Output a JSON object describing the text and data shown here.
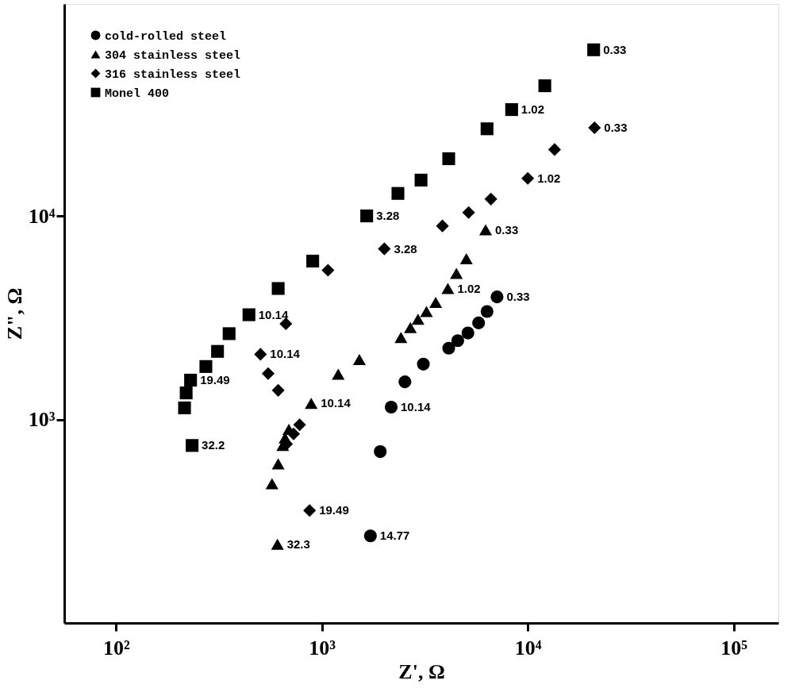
{
  "chart_data": {
    "type": "scatter",
    "xlabel": "Z', Ω",
    "ylabel": "Z\", Ω",
    "log": "xy",
    "grid": false,
    "legend": "top left",
    "xlim": [
      56,
      165000
    ],
    "ylim": [
      100,
      110000
    ],
    "xticks": [
      {
        "value": 100,
        "label": "10²"
      },
      {
        "value": 1000,
        "label": "10³"
      },
      {
        "value": 10000,
        "label": "10⁴"
      },
      {
        "value": 100000,
        "label": "10⁵"
      }
    ],
    "yticks": [
      {
        "value": 1000,
        "label": "10³"
      },
      {
        "value": 10000,
        "label": "10⁴"
      }
    ],
    "series": [
      {
        "name": "cold-rolled steel",
        "color": "#000000",
        "marker": "circle",
        "x": [
          7090,
          6340,
          5770,
          5120,
          4570,
          4130,
          3110,
          2530,
          2170,
          1920,
          1720
        ],
        "values": [
          4000,
          3390,
          2980,
          2660,
          2440,
          2240,
          1870,
          1530,
          1150,
          695,
          268
        ]
      },
      {
        "name": "304 stainless steel",
        "color": "#000000",
        "marker": "triangle",
        "x": [
          6240,
          5030,
          4500,
          4090,
          3570,
          3220,
          2930,
          2690,
          2420,
          1520,
          1200,
          887,
          691,
          662,
          645,
          613,
          572,
          608
        ],
        "values": [
          8550,
          6160,
          5220,
          4400,
          3760,
          3390,
          3110,
          2830,
          2530,
          1970,
          1670,
          1200,
          894,
          812,
          745,
          605,
          483,
          244
        ]
      },
      {
        "name": "316 stainless steel",
        "color": "#000000",
        "marker": "diamond",
        "x": [
          21100,
          13500,
          10000,
          6620,
          5160,
          3850,
          2010,
          1070,
          668,
          503,
          548,
          613,
          779,
          728,
          673,
          871
        ],
        "values": [
          27100,
          21200,
          15300,
          12100,
          10400,
          8930,
          6890,
          5410,
          2950,
          2090,
          1680,
          1390,
          941,
          849,
          758,
          357
        ]
      },
      {
        "name": "Monel 400",
        "color": "#000000",
        "marker": "square",
        "x": [
          20900,
          12100,
          8350,
          6340,
          4130,
          3030,
          2340,
          1650,
          902,
          613,
          442,
          354,
          311,
          273,
          230,
          219,
          215,
          234
        ],
        "values": [
          65500,
          43600,
          33300,
          26800,
          19100,
          15000,
          12900,
          10000,
          6000,
          4400,
          3270,
          2640,
          2160,
          1820,
          1560,
          1350,
          1140,
          745
        ]
      }
    ],
    "annotations": [
      {
        "text": "0.33",
        "x": 7090,
        "y": 4000
      },
      {
        "text": "10.14",
        "x": 2170,
        "y": 1150
      },
      {
        "text": "14.77",
        "x": 1720,
        "y": 268
      },
      {
        "text": "0.33",
        "x": 6240,
        "y": 8550
      },
      {
        "text": "1.02",
        "x": 4090,
        "y": 4400
      },
      {
        "text": "10.14",
        "x": 887,
        "y": 1200
      },
      {
        "text": "32.3",
        "x": 608,
        "y": 244
      },
      {
        "text": "0.33",
        "x": 21100,
        "y": 27100
      },
      {
        "text": "1.02",
        "x": 10000,
        "y": 15300
      },
      {
        "text": "3.28",
        "x": 2010,
        "y": 6890
      },
      {
        "text": "10.14",
        "x": 503,
        "y": 2090
      },
      {
        "text": "19.49",
        "x": 871,
        "y": 357
      },
      {
        "text": "0.33",
        "x": 20900,
        "y": 65500
      },
      {
        "text": "1.02",
        "x": 8350,
        "y": 33300
      },
      {
        "text": "3.28",
        "x": 1650,
        "y": 10000
      },
      {
        "text": "10.14",
        "x": 442,
        "y": 3270
      },
      {
        "text": "19.49",
        "x": 230,
        "y": 1560
      },
      {
        "text": "32.2",
        "x": 234,
        "y": 745
      }
    ]
  }
}
